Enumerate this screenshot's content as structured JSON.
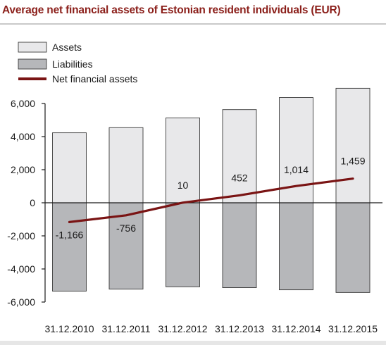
{
  "colors": {
    "title": "#8b1f1a",
    "assets_fill": "#e8e8ea",
    "liabilities_fill": "#b6b7ba",
    "bar_stroke": "#3a3a3a",
    "line": "#7a1414",
    "text": "#1a1a1a"
  },
  "chart_data": {
    "type": "bar",
    "title": "Average net financial assets of Estonian resident individuals (EUR)",
    "categories": [
      "31.12.2010",
      "31.12.2011",
      "31.12.2012",
      "31.12.2013",
      "31.12.2014",
      "31.12.2015"
    ],
    "series": [
      {
        "name": "Assets",
        "type": "bar",
        "values": [
          4230,
          4540,
          5130,
          5630,
          6360,
          6920
        ]
      },
      {
        "name": "Liabilities",
        "type": "bar",
        "values": [
          -5340,
          -5220,
          -5080,
          -5130,
          -5260,
          -5420
        ]
      },
      {
        "name": "Net financial assets",
        "type": "line",
        "values": [
          -1166,
          -756,
          10,
          452,
          1014,
          1459
        ]
      }
    ],
    "data_labels": [
      "-1,166",
      "-756",
      "10",
      "452",
      "1,014",
      "1,459"
    ],
    "y_ticks": [
      6000,
      4000,
      2000,
      0,
      -2000,
      -4000,
      -6000
    ],
    "y_tick_labels": [
      "6,000",
      "4,000",
      "2,000",
      "0",
      "-2,000",
      "-4,000",
      "-6,000"
    ],
    "ylim": [
      -6000,
      6000
    ],
    "grid": false,
    "legend_position": "top-left"
  }
}
